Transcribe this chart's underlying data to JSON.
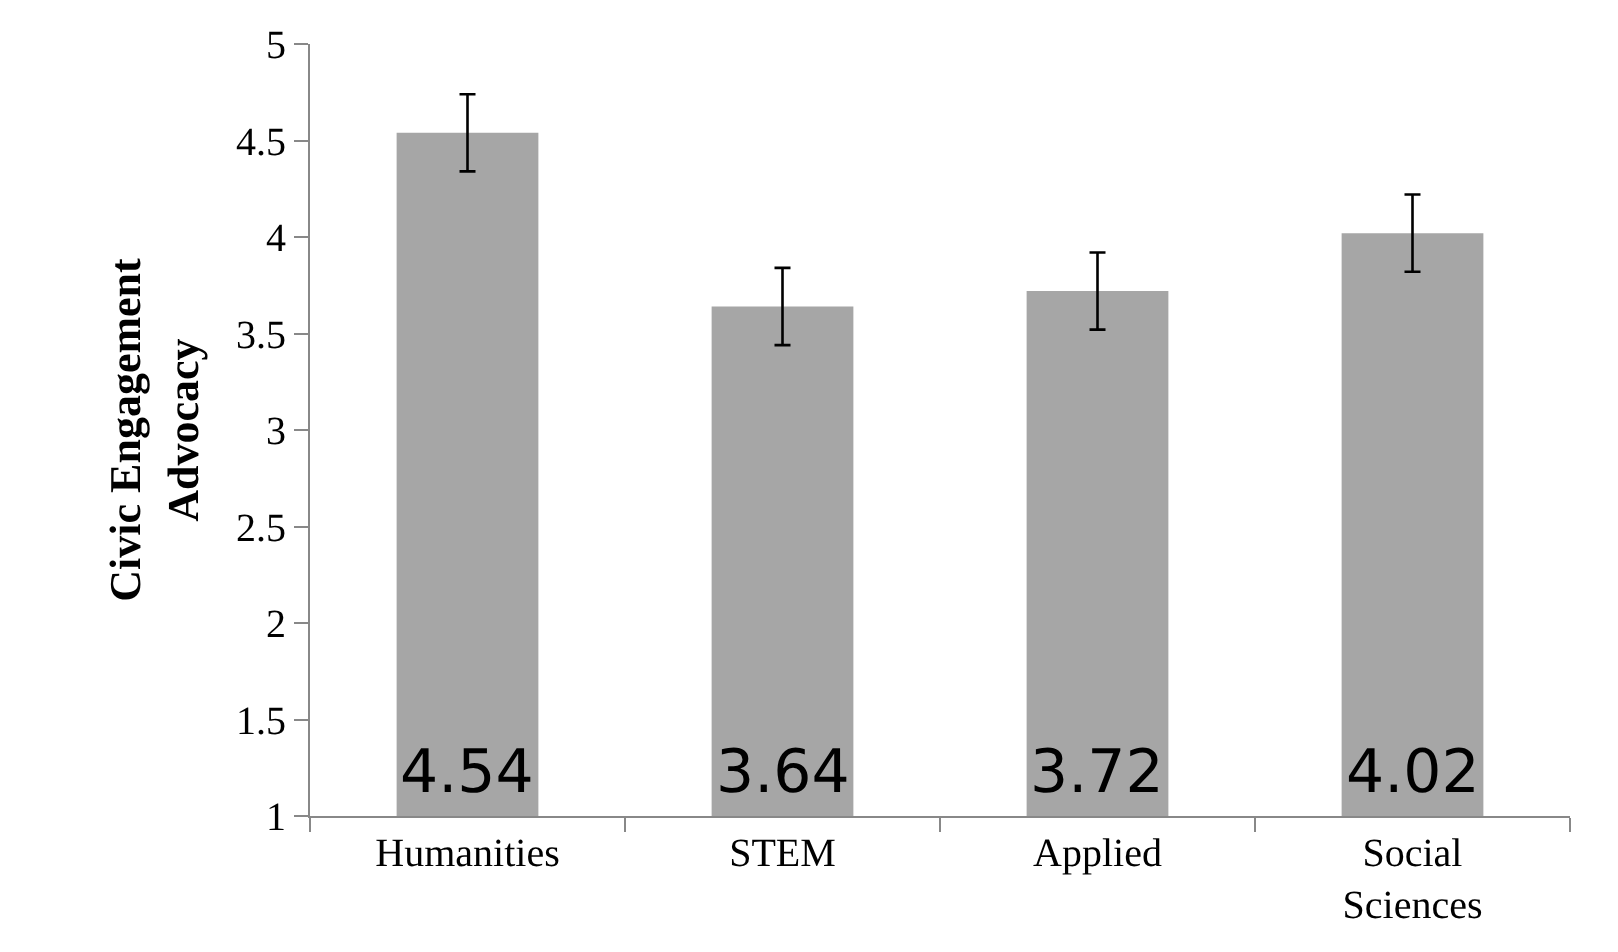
{
  "chart_data": {
    "type": "bar",
    "ylabel": "Civic Engagement Advocacy",
    "categories": [
      "Humanities",
      "STEM",
      "Applied",
      "Social Sciences"
    ],
    "values": [
      4.54,
      3.64,
      3.72,
      4.02
    ],
    "errors": [
      0.2,
      0.2,
      0.2,
      0.2
    ],
    "color": "#a6a6a6",
    "ylim": [
      1,
      5
    ],
    "yticks": [
      1,
      1.5,
      2,
      2.5,
      3,
      3.5,
      4,
      4.5,
      5
    ],
    "grid": false,
    "legend": false,
    "data_labels": true
  }
}
